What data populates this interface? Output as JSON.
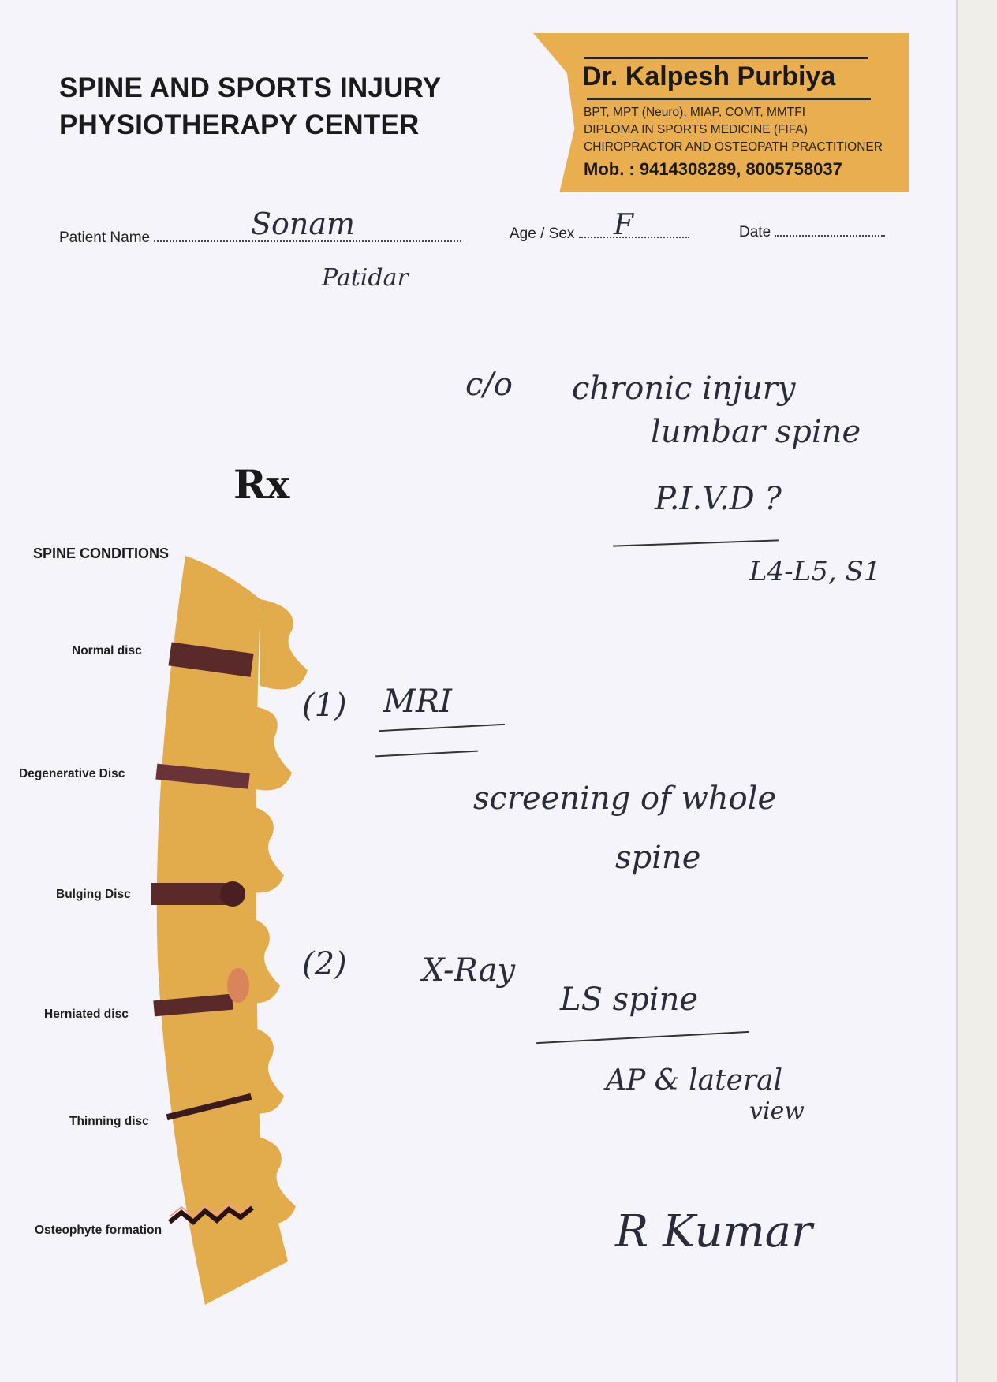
{
  "header": {
    "clinic_line1": "SPINE AND SPORTS INJURY",
    "clinic_line2": "PHYSIOTHERAPY CENTER"
  },
  "doctor_card": {
    "name": "Dr. Kalpesh Purbiya",
    "qualifications": "BPT, MPT (Neuro), MIAP, COMT, MMTFI",
    "diploma": "DIPLOMA IN SPORTS MEDICINE (FIFA)",
    "practice": "CHIROPRACTOR AND OSTEOPATH PRACTITIONER",
    "mobile": "Mob. : 9414308289, 8005758037",
    "color": "#e9ae4f"
  },
  "form": {
    "patient_name_label": "Patient Name",
    "patient_name_value": "Sonam",
    "patient_name_value2": "Patidar",
    "age_sex_label": "Age / Sex",
    "age_sex_value": "F",
    "date_label": "Date",
    "date_value": ""
  },
  "rx_symbol": "Rx",
  "spine_chart": {
    "title": "SPINE CONDITIONS",
    "labels": [
      "Normal disc",
      "Degenerative Disc",
      "Bulging Disc",
      "Herniated disc",
      "Thinning disc",
      "Osteophyte formation"
    ],
    "bone_color": "#e2ac4c",
    "disc_color": "#5a2a2a"
  },
  "notes": {
    "complaint_prefix": "c/o",
    "complaint_line1": "chronic injury",
    "complaint_line2": "lumbar spine",
    "diagnosis": "P.I.V.D ?",
    "levels": "L4-L5, S1",
    "item1_num": "(1)",
    "item1": "MRI",
    "item1_detail_line1": "screening of whole",
    "item1_detail_line2": "spine",
    "item2_num": "(2)",
    "item2": "X-Ray",
    "item2_detail": "LS spine",
    "item2_view_line1": "AP & lateral",
    "item2_view_line2": "view",
    "signature": "R Kumar"
  }
}
